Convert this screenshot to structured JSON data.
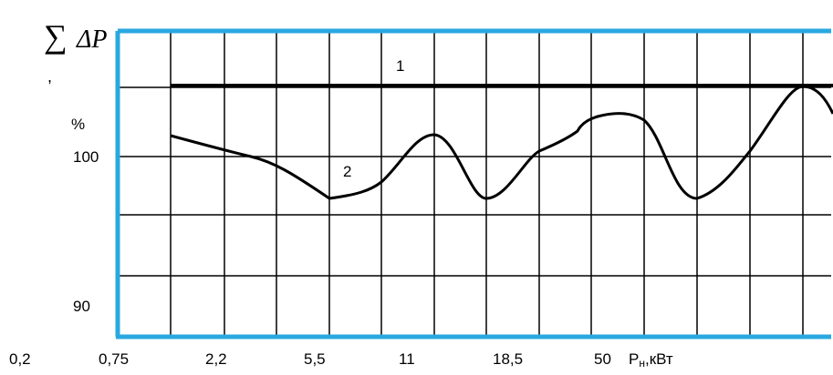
{
  "chart_data": {
    "type": "line",
    "title": "",
    "ylabel_symbol": "∑",
    "ylabel_main": "ΔP",
    "ylabel_comma": ",",
    "ylabel_unit": "%",
    "xlabel": "Pн,кВт",
    "x_categories": [
      "0,2",
      "0,75",
      "2,2",
      "5,5",
      "11",
      "18,5",
      "50"
    ],
    "y_tick_labels": [
      "100",
      "90"
    ],
    "grid": true,
    "colors": {
      "frame": "#29a8e0",
      "grid": "#000000",
      "curve": "#000000"
    },
    "series": [
      {
        "name": "1",
        "description_index": 0
      },
      {
        "name": "2",
        "description_index": 1
      }
    ]
  }
}
